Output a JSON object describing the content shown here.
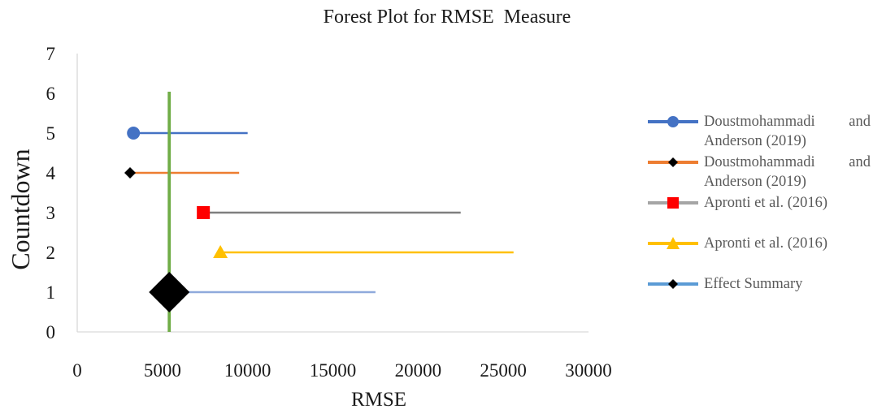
{
  "chart_data": {
    "type": "scatter",
    "title": "Forest Plot for RMSE  Measure",
    "xlabel": "RMSE",
    "ylabel": "Countdown",
    "xlim": [
      0,
      30000
    ],
    "ylim": [
      0,
      7
    ],
    "x_ticks": [
      "0",
      "5000",
      "10000",
      "15000",
      "20000",
      "25000",
      "30000"
    ],
    "y_ticks": [
      "0",
      "1",
      "2",
      "3",
      "4",
      "5",
      "6",
      "7"
    ],
    "grid": false,
    "legend_position": "right",
    "reference_line": {
      "x": 5400,
      "y_range": [
        0,
        6
      ],
      "color": "#70ad47"
    },
    "series": [
      {
        "name": "Doustmohammadi and Anderson (2019)",
        "y": 5,
        "point": 3300,
        "ci": [
          3300,
          10000
        ],
        "color": "#4472c4",
        "marker": "circle",
        "marker_color": "#4472c4"
      },
      {
        "name": "Doustmohammadi and Anderson (2019)",
        "y": 4,
        "point": 3100,
        "ci": [
          3100,
          9500
        ],
        "color": "#ed7d31",
        "marker": "diamond",
        "marker_color": "#000000"
      },
      {
        "name": "Apronti et al. (2016)",
        "y": 3,
        "point": 7400,
        "ci": [
          7400,
          22500
        ],
        "color": "#7f7f7f",
        "marker": "square",
        "marker_color": "#ff0000"
      },
      {
        "name": "Apronti et al. (2016)",
        "y": 2,
        "point": 8400,
        "ci": [
          8400,
          25600
        ],
        "color": "#ffc000",
        "marker": "triangle",
        "marker_color": "#ffc000"
      },
      {
        "name": "Effect Summary",
        "y": 1,
        "point": 5400,
        "ci": [
          5400,
          17500
        ],
        "color": "#8faadc",
        "marker": "diamond-large",
        "marker_color": "#000000"
      }
    ]
  },
  "legend": {
    "items": [
      {
        "label": "Doustmohammadi and Anderson (2019)",
        "line_color": "#4472c4",
        "marker": "circle",
        "marker_color": "#4472c4"
      },
      {
        "label": "Doustmohammadi and Anderson (2019)",
        "line_color": "#ed7d31",
        "marker": "diamond",
        "marker_color": "#000000"
      },
      {
        "label": "Apronti et al. (2016)",
        "line_color": "#a5a5a5",
        "marker": "square",
        "marker_color": "#ff0000"
      },
      {
        "label": "Apronti et al. (2016)",
        "line_color": "#ffc000",
        "marker": "triangle",
        "marker_color": "#ffc000"
      },
      {
        "label": "Effect Summary",
        "line_color": "#5b9bd5",
        "marker": "diamond",
        "marker_color": "#000000"
      }
    ]
  }
}
